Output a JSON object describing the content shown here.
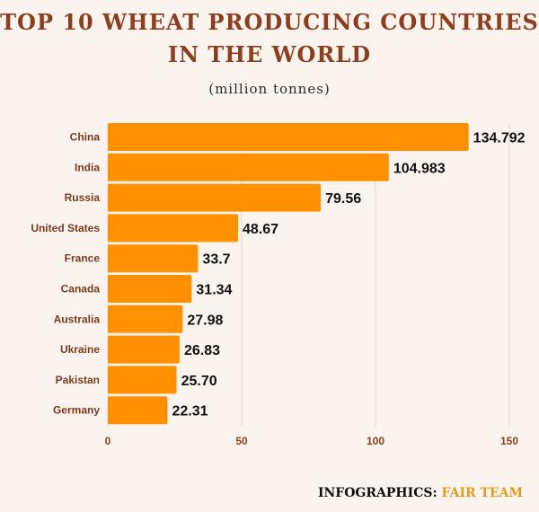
{
  "title_line1": "TOP 10 WHEAT PRODUCING COUNTRIES",
  "title_line2": "IN THE WORLD",
  "subtitle": "(million tonnes)",
  "credit_prefix": "INFOGRAPHICS:",
  "credit_brand": "FAIR TEAM",
  "colors": {
    "bar": "#ff9100",
    "title": "#8b3f1f",
    "background": "#fbf3ee",
    "credit_brand": "#e59a1c"
  },
  "chart_data": {
    "type": "bar",
    "orientation": "horizontal",
    "categories": [
      "China",
      "India",
      "Russia",
      "United States",
      "France",
      "Canada",
      "Australia",
      "Ukraine",
      "Pakistan",
      "Germany"
    ],
    "values": [
      134.792,
      104.983,
      79.56,
      48.67,
      33.7,
      31.34,
      27.98,
      26.83,
      25.7,
      22.31
    ],
    "value_labels": [
      "134.792",
      "104.983",
      "79.56",
      "48.67",
      "33.7",
      "31.34",
      "27.98",
      "26.83",
      "25.70",
      "22.31"
    ],
    "x_ticks": [
      "0",
      "50",
      "100",
      "150"
    ],
    "xlim": [
      0,
      150
    ],
    "grid": "vertical"
  }
}
